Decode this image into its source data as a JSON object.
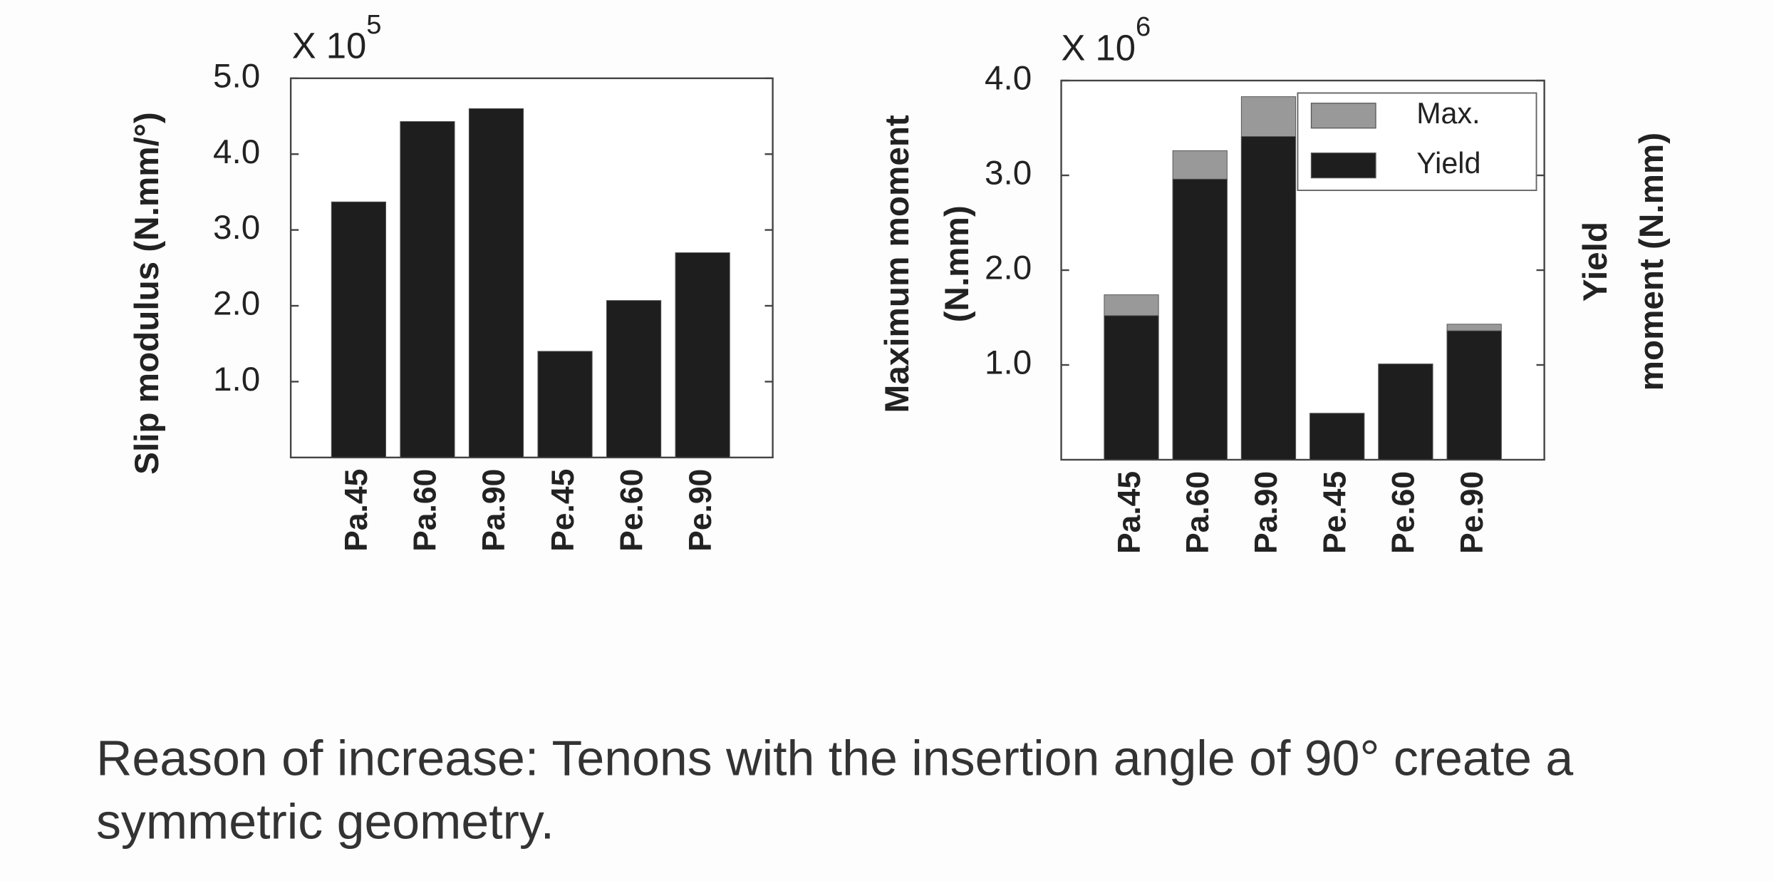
{
  "chart_data": [
    {
      "type": "bar",
      "y_label": [
        "Slip modulus (N.mm/°)"
      ],
      "scale_label": {
        "text": "X 10",
        "exponent": "5"
      },
      "categories": [
        "Pa.45",
        "Pa.60",
        "Pa.90",
        "Pe.45",
        "Pe.60",
        "Pe.90"
      ],
      "values": [
        3.37,
        4.43,
        4.6,
        1.4,
        2.07,
        2.7
      ],
      "color": "#1e1e1e",
      "ylim": [
        0,
        5
      ],
      "yticks": [
        {
          "value": 1,
          "label": "1.0"
        },
        {
          "value": 2,
          "label": "2.0"
        },
        {
          "value": 3,
          "label": "3.0"
        },
        {
          "value": 4,
          "label": "4.0"
        },
        {
          "value": 5,
          "label": "5.0"
        }
      ]
    },
    {
      "type": "bar",
      "barmode": "overlay",
      "y_label": [
        "Maximum moment",
        "(N.mm)"
      ],
      "y2_label": [
        "Yield",
        "moment (N.mm)"
      ],
      "scale_label": {
        "text": "X 10",
        "exponent": "6"
      },
      "categories": [
        "Pa.45",
        "Pa.60",
        "Pa.90",
        "Pe.45",
        "Pe.60",
        "Pe.90"
      ],
      "series": [
        {
          "name": "Max.",
          "color": "#999999",
          "values": [
            1.74,
            3.26,
            3.83,
            0.49,
            1.01,
            1.43
          ]
        },
        {
          "name": "Yield",
          "color": "#1e1e1e",
          "values": [
            1.52,
            2.96,
            3.41,
            0.49,
            1.01,
            1.36
          ]
        }
      ],
      "ylim": [
        0,
        4
      ],
      "yticks": [
        {
          "value": 1,
          "label": "1.0"
        },
        {
          "value": 2,
          "label": "2.0"
        },
        {
          "value": 3,
          "label": "3.0"
        },
        {
          "value": 4,
          "label": "4.0"
        }
      ],
      "legend": "upper right"
    }
  ],
  "caption": [
    "Reason of increase: Tenons with the insertion angle of 90° create a",
    "symmetric geometry."
  ]
}
